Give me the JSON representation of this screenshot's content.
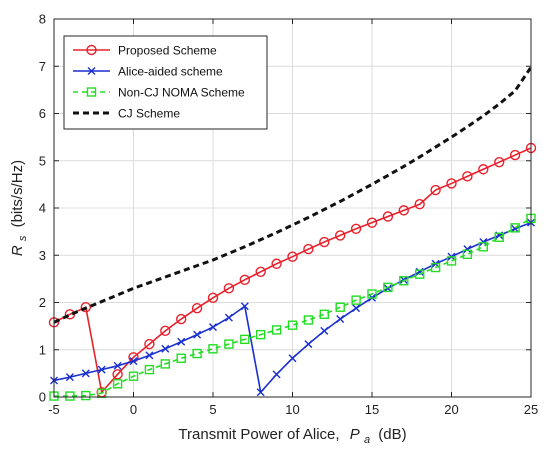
{
  "chart_data": {
    "type": "line",
    "title": "",
    "xlabel": "Transmit Power of Alice,",
    "xlabel_var": "P",
    "xlabel_sub": "a",
    "xlabel_unit": "(dB)",
    "ylabel": "R",
    "ylabel_sub": "s",
    "ylabel_unit": "(bits/s/Hz)",
    "xlim": [
      -5,
      25
    ],
    "ylim": [
      0,
      8
    ],
    "xticks": [
      -5,
      0,
      5,
      10,
      15,
      20,
      25
    ],
    "yticks": [
      0,
      1,
      2,
      3,
      4,
      5,
      6,
      7,
      8
    ],
    "grid": true,
    "legend_position": "top-left",
    "series": [
      {
        "name": "Proposed Scheme",
        "color": "#e8202a",
        "line_style": "solid",
        "marker": "circle",
        "x": [
          -5,
          -4,
          -3,
          -2,
          -1,
          0,
          1,
          2,
          3,
          4,
          5,
          6,
          7,
          8,
          9,
          10,
          11,
          12,
          13,
          14,
          15,
          16,
          17,
          18,
          19,
          20,
          21,
          22,
          23,
          24,
          25
        ],
        "y": [
          1.58,
          1.75,
          1.9,
          0.1,
          0.48,
          0.84,
          1.12,
          1.4,
          1.65,
          1.88,
          2.1,
          2.3,
          2.48,
          2.65,
          2.82,
          2.97,
          3.13,
          3.28,
          3.42,
          3.56,
          3.69,
          3.82,
          3.95,
          4.08,
          4.38,
          4.52,
          4.67,
          4.82,
          4.97,
          5.12,
          5.27
        ]
      },
      {
        "name": "Alice-aided scheme",
        "color": "#1a2fd0",
        "line_style": "solid",
        "marker": "x",
        "x": [
          -5,
          -4,
          -3,
          -2,
          -1,
          0,
          1,
          2,
          3,
          4,
          5,
          6,
          7,
          8,
          9,
          10,
          11,
          12,
          13,
          14,
          15,
          16,
          17,
          18,
          19,
          20,
          21,
          22,
          23,
          24,
          25
        ],
        "y": [
          0.35,
          0.42,
          0.5,
          0.58,
          0.66,
          0.76,
          0.88,
          1.02,
          1.17,
          1.32,
          1.48,
          1.68,
          1.92,
          0.1,
          0.48,
          0.82,
          1.12,
          1.4,
          1.65,
          1.88,
          2.1,
          2.3,
          2.48,
          2.65,
          2.82,
          2.97,
          3.13,
          3.28,
          3.42,
          3.56,
          3.69
        ]
      },
      {
        "name": "Non-CJ NOMA Scheme",
        "color": "#22dd22",
        "line_style": "dashed",
        "marker": "square",
        "x": [
          -5,
          -4,
          -3,
          -2,
          -1,
          0,
          1,
          2,
          3,
          4,
          5,
          6,
          7,
          8,
          9,
          10,
          11,
          12,
          13,
          14,
          15,
          16,
          17,
          18,
          19,
          20,
          21,
          22,
          23,
          24,
          25
        ],
        "y": [
          0.02,
          0.02,
          0.03,
          0.08,
          0.28,
          0.44,
          0.58,
          0.7,
          0.82,
          0.92,
          1.02,
          1.12,
          1.22,
          1.32,
          1.42,
          1.52,
          1.63,
          1.75,
          1.9,
          2.05,
          2.18,
          2.32,
          2.46,
          2.6,
          2.74,
          2.88,
          3.02,
          3.18,
          3.38,
          3.58,
          3.78
        ]
      },
      {
        "name": "CJ Scheme",
        "color": "#111111",
        "line_style": "dashed",
        "marker": "none",
        "x": [
          -5,
          -4,
          -3,
          -2,
          -1,
          0,
          1,
          2,
          3,
          4,
          5,
          6,
          7,
          8,
          9,
          10,
          11,
          12,
          13,
          14,
          15,
          16,
          17,
          18,
          19,
          20,
          21,
          22,
          23,
          24,
          25
        ],
        "y": [
          1.58,
          1.74,
          1.88,
          2.02,
          2.16,
          2.3,
          2.42,
          2.54,
          2.66,
          2.78,
          2.9,
          3.04,
          3.18,
          3.33,
          3.48,
          3.64,
          3.8,
          3.97,
          4.14,
          4.32,
          4.5,
          4.69,
          4.88,
          5.08,
          5.29,
          5.5,
          5.72,
          5.95,
          6.2,
          6.48,
          6.98
        ]
      }
    ]
  }
}
